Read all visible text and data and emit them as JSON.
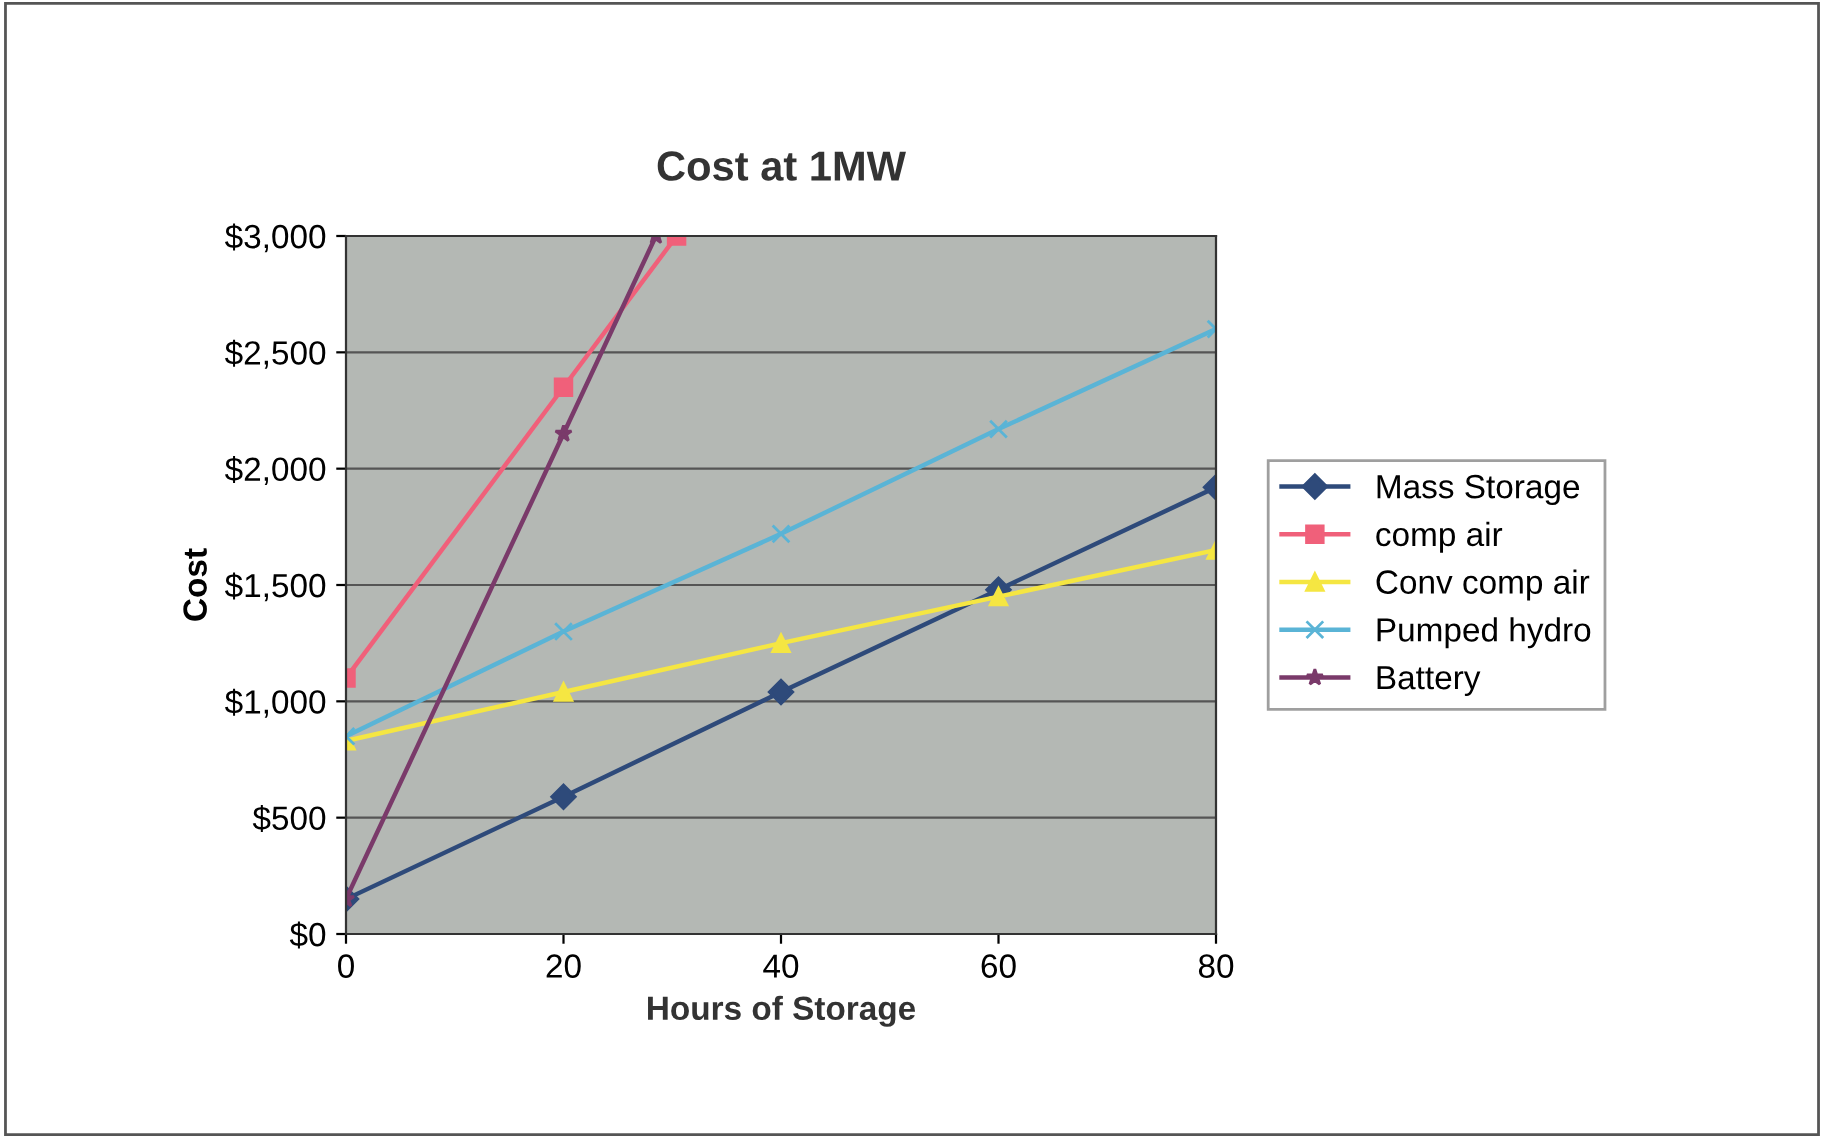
{
  "chart_data": {
    "type": "line",
    "title": "Cost at 1MW",
    "xlabel": "Hours of Storage",
    "ylabel": "Cost",
    "x": [
      0,
      20,
      40,
      60,
      80
    ],
    "xlim": [
      0,
      80
    ],
    "xticks": [
      0,
      20,
      40,
      60,
      80
    ],
    "ylim": [
      0,
      3000
    ],
    "yticks": [
      {
        "value": 0,
        "label": "$0"
      },
      {
        "value": 500,
        "label": "$500"
      },
      {
        "value": 1000,
        "label": "$1,000"
      },
      {
        "value": 1500,
        "label": "$1,500"
      },
      {
        "value": 2000,
        "label": "$2,000"
      },
      {
        "value": 2500,
        "label": "$2,500"
      },
      {
        "value": 3000,
        "label": "$3,000"
      }
    ],
    "grid": "y",
    "legend": "right",
    "series": [
      {
        "name": "Mass Storage",
        "color": "#2e4a7a",
        "marker": "diamond",
        "values": [
          150,
          590,
          1040,
          1480,
          1920
        ]
      },
      {
        "name": "comp air",
        "color": "#f0607a",
        "marker": "square",
        "x": [
          0,
          20,
          30.4
        ],
        "values": [
          1100,
          2350,
          3000
        ]
      },
      {
        "name": "Conv comp air",
        "color": "#f5e642",
        "marker": "triangle",
        "values": [
          830,
          1040,
          1250,
          1450,
          1650
        ]
      },
      {
        "name": "Pumped hydro",
        "color": "#5ab4d6",
        "marker": "cross",
        "values": [
          850,
          1300,
          1720,
          2170,
          2600
        ]
      },
      {
        "name": "Battery",
        "color": "#7a3a6a",
        "marker": "star",
        "x": [
          0,
          20,
          28.5
        ],
        "values": [
          150,
          2150,
          3000
        ]
      }
    ]
  }
}
